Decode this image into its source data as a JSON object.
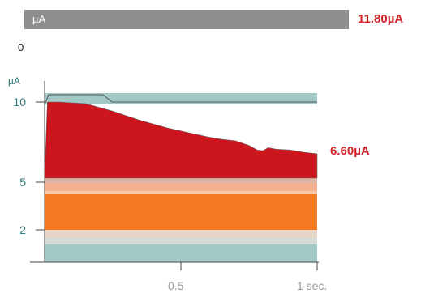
{
  "meter": {
    "bar_label": "µA",
    "bar_value": "11.80µA",
    "zero_label": "0",
    "current_reading": "6.60µA"
  },
  "chart_data": {
    "type": "area",
    "y_unit_label": "µA",
    "y_tick_labels": [
      "10",
      "5",
      "2"
    ],
    "x_tick_labels": [
      "0.5",
      "1 sec."
    ],
    "xlim": [
      0,
      1
    ],
    "series": [
      {
        "x": [
          0,
          0.01,
          0.05,
          0.15,
          0.25,
          0.35,
          0.45,
          0.55,
          0.6,
          0.65,
          0.7,
          0.75,
          0.78,
          0.8,
          0.82,
          0.85,
          0.9,
          0.95,
          1.0
        ],
        "y": [
          5,
          10,
          10,
          9.9,
          9.4,
          8.8,
          8.3,
          7.9,
          7.7,
          7.55,
          7.45,
          7.15,
          6.85,
          6.8,
          7.0,
          6.9,
          6.85,
          6.7,
          6.6
        ]
      }
    ],
    "colors": {
      "fill": "#cc151c",
      "band_teal": "#a3c9c6",
      "band_orange": "#f47920",
      "band_peach": "#f4b08f",
      "band_light": "#e7d6c8"
    }
  }
}
